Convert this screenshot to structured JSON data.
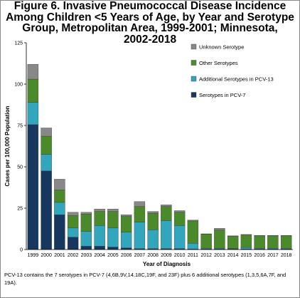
{
  "chart_data": {
    "type": "bar",
    "stacked": true,
    "title_lines": [
      "Figure 6. Invasive Pneumococcal Disease Incidence",
      "Among Children <5 Years of Age, by Year and Serotype",
      "Group, Metropolitan Area, 1999-2001; Minnesota,",
      "2002-2018"
    ],
    "xlabel": "Year of Diagnosis",
    "ylabel": "Cases per 100,000 Population",
    "ylim": [
      0,
      125
    ],
    "yticks": [
      0,
      25,
      50,
      75,
      100,
      125
    ],
    "grid": false,
    "legend_position": "top-right",
    "categories": [
      "1999",
      "2000",
      "2001",
      "2002",
      "2003",
      "2004",
      "2005",
      "2006",
      "2007",
      "2008",
      "2009",
      "2010",
      "2011",
      "2012",
      "2013",
      "2014",
      "2015",
      "2016",
      "2017",
      "2018"
    ],
    "series": [
      {
        "name": "Serotypes in PCV-7",
        "color": "#17375e",
        "values": [
          75.5,
          47.5,
          21,
          7.5,
          2,
          2,
          1.5,
          1,
          0.5,
          0.5,
          0.5,
          0.5,
          0.3,
          0.3,
          0.3,
          0.3,
          0.3,
          0.3,
          0.3,
          0.3
        ]
      },
      {
        "name": "Additional Serotypes in PCV-13",
        "color": "#31a6bd",
        "values": [
          13.5,
          10,
          7.5,
          5.5,
          9,
          12.5,
          11.5,
          9.5,
          16,
          11.5,
          17,
          14,
          3.5,
          0.5,
          0.5,
          0.3,
          1,
          0.5,
          0.5,
          0.5
        ]
      },
      {
        "name": "Other Serotypes",
        "color": "#4a8a2a",
        "values": [
          14,
          11,
          7.5,
          7.5,
          10.5,
          8.5,
          10,
          9.5,
          9.5,
          10,
          8.5,
          8,
          13.5,
          8.5,
          11,
          7.5,
          7.5,
          7.5,
          7.5,
          7.5
        ]
      },
      {
        "name": "Unknown Serotype",
        "color": "#888888",
        "values": [
          9,
          5,
          6.5,
          2,
          1,
          1.5,
          1.5,
          1,
          3,
          1,
          1,
          1,
          0.5,
          0.2,
          1,
          0.2,
          0.3,
          0.2,
          0.2,
          0.2
        ]
      }
    ],
    "legend_order": [
      "Unknown Serotype",
      "Other Serotypes",
      "Additional Serotypes in PCV-13",
      "Serotypes in PCV-7"
    ]
  },
  "footnote": "PCV-13 contains the 7 serotypes in PCV-7 (4,6B,9V,14,18C,19F, and 23F) plus 6 additional serotypes (1,3,5,6A,7F, and 19A)."
}
